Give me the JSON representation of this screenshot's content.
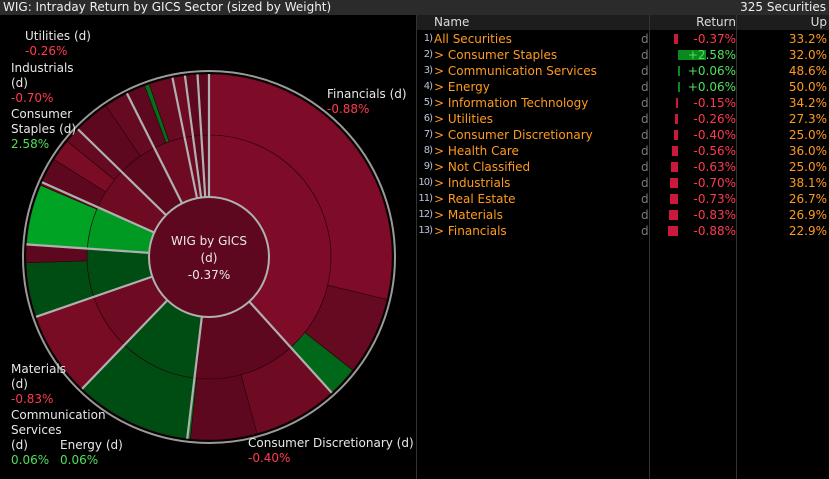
{
  "header": {
    "title": "WIG: Intraday Return by GICS Sector (sized by Weight)",
    "count": "325 Securities"
  },
  "table": {
    "columns": {
      "name": "Name",
      "return": "Return",
      "up": "Up"
    },
    "rows": [
      {
        "num": "1)",
        "name": "All Securities",
        "flag": "d",
        "ret": -0.37,
        "ret_text": "-0.37%",
        "up": "33.2%"
      },
      {
        "num": "2)",
        "name": "> Consumer Staples",
        "flag": "d",
        "ret": 2.58,
        "ret_text": "+2.58%",
        "up": "32.0%"
      },
      {
        "num": "3)",
        "name": "> Communication Services",
        "flag": "d",
        "ret": 0.06,
        "ret_text": "+0.06%",
        "up": "48.6%"
      },
      {
        "num": "4)",
        "name": "> Energy",
        "flag": "d",
        "ret": 0.06,
        "ret_text": "+0.06%",
        "up": "50.0%"
      },
      {
        "num": "5)",
        "name": "> Information Technology",
        "flag": "d",
        "ret": -0.15,
        "ret_text": "-0.15%",
        "up": "34.2%"
      },
      {
        "num": "6)",
        "name": "> Utilities",
        "flag": "d",
        "ret": -0.26,
        "ret_text": "-0.26%",
        "up": "27.3%"
      },
      {
        "num": "7)",
        "name": "> Consumer Discretionary",
        "flag": "d",
        "ret": -0.4,
        "ret_text": "-0.40%",
        "up": "25.0%"
      },
      {
        "num": "8)",
        "name": "> Health Care",
        "flag": "d",
        "ret": -0.56,
        "ret_text": "-0.56%",
        "up": "36.0%"
      },
      {
        "num": "9)",
        "name": "> Not Classified",
        "flag": "d",
        "ret": -0.63,
        "ret_text": "-0.63%",
        "up": "25.0%"
      },
      {
        "num": "10)",
        "name": "> Industrials",
        "flag": "d",
        "ret": -0.7,
        "ret_text": "-0.70%",
        "up": "38.1%"
      },
      {
        "num": "11)",
        "name": "> Real Estate",
        "flag": "d",
        "ret": -0.73,
        "ret_text": "-0.73%",
        "up": "26.7%"
      },
      {
        "num": "12)",
        "name": "> Materials",
        "flag": "d",
        "ret": -0.83,
        "ret_text": "-0.83%",
        "up": "26.9%"
      },
      {
        "num": "13)",
        "name": "> Financials",
        "flag": "d",
        "ret": -0.88,
        "ret_text": "-0.88%",
        "up": "22.9%"
      }
    ]
  },
  "chart_data": {
    "type": "sunburst",
    "center": {
      "line1": "WIG by GICS",
      "line2": "(d)",
      "value": "-0.37%"
    },
    "sectors": [
      {
        "name": "Financials",
        "weight": 38.3,
        "ret": -0.88
      },
      {
        "name": "Consumer Discretionary",
        "weight": 13.6,
        "ret": -0.4
      },
      {
        "name": "Communication Services",
        "weight": 10.3,
        "ret": 0.06
      },
      {
        "name": "Materials",
        "weight": 7.5,
        "ret": -0.83
      },
      {
        "name": "Energy",
        "weight": 6.4,
        "ret": 0.06
      },
      {
        "name": "Consumer Staples",
        "weight": 5.6,
        "ret": 2.58
      },
      {
        "name": "Industrials",
        "weight": 5.6,
        "ret": -0.7
      },
      {
        "name": "Health Care",
        "weight": 5.3,
        "ret": -0.56
      },
      {
        "name": "Real Estate",
        "weight": 4.2,
        "ret": -0.73
      },
      {
        "name": "Not Classified",
        "weight": 1.1,
        "ret": -0.63
      },
      {
        "name": "Information Technology",
        "weight": 1.1,
        "ret": -0.15
      },
      {
        "name": "Utilities",
        "weight": 1.0,
        "ret": -0.26
      }
    ],
    "labels": [
      {
        "name": "Utilities (d)",
        "value": "-0.26%"
      },
      {
        "name": "Industrials\n(d)",
        "value": "-0.70%"
      },
      {
        "name": "Consumer\nStaples (d)",
        "value": "2.58%"
      },
      {
        "name": "Financials (d)",
        "value": "-0.88%"
      },
      {
        "name": "Materials\n(d)",
        "value": "-0.83%"
      },
      {
        "name": "Communication\nServices\n(d)",
        "value": "0.06%"
      },
      {
        "name": "Energy (d)",
        "value": "0.06%"
      },
      {
        "name": "Consumer Discretionary (d)",
        "value": "-0.40%"
      }
    ],
    "colors": {
      "negative": "#7e0c28",
      "negative_dark": "#5e0820",
      "positive_strong": "#009a22",
      "positive_weak": "#004d14",
      "divider": "#b0b0b0"
    }
  }
}
